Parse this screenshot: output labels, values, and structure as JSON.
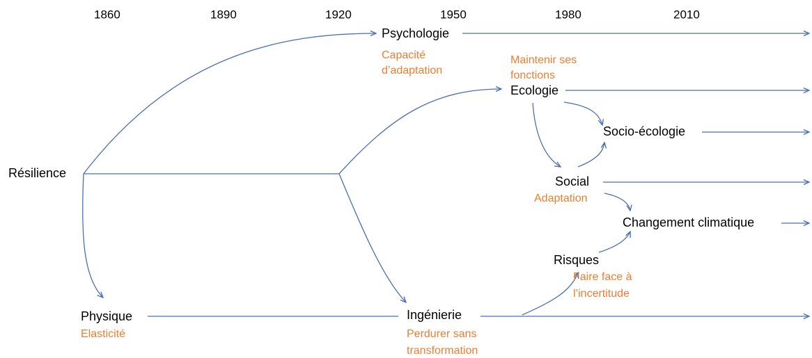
{
  "years": [
    "1860",
    "1890",
    "1920",
    "1950",
    "1980",
    "2010"
  ],
  "nodes": [
    {
      "label": "Résilience",
      "sublabel": []
    },
    {
      "label": "Psychologie",
      "sublabel": [
        "Capacité",
        "d’adaptation"
      ]
    },
    {
      "label": "Ecologie",
      "sublabel": [
        "Maintenir ses",
        "fonctions"
      ]
    },
    {
      "label": "Socio-écologie",
      "sublabel": []
    },
    {
      "label": "Social",
      "sublabel": [
        "Adaptation"
      ]
    },
    {
      "label": "Changement climatique",
      "sublabel": []
    },
    {
      "label": "Risques",
      "sublabel": [
        "Faire face à",
        "l’incertitude"
      ]
    },
    {
      "label": "Physique",
      "sublabel": [
        "Elasticité"
      ]
    },
    {
      "label": "Ingénierie",
      "sublabel": [
        "Perdurer sans",
        "transformation"
      ]
    }
  ]
}
